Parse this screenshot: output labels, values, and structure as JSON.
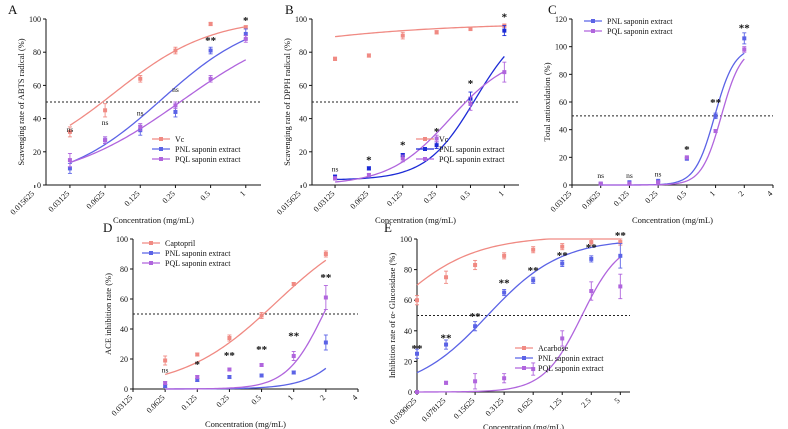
{
  "colors": {
    "red": "#f08a83",
    "blue": "#5b63e6",
    "blueDark": "#1c2bd6",
    "purple": "#b065dd",
    "axis": "#111111"
  },
  "chart_data": [
    {
      "type": "scatter",
      "panel": "A",
      "x": [
        0.03125,
        0.0625,
        0.125,
        0.25,
        0.5,
        1
      ],
      "xticks": [
        "0.015625",
        "0.03125",
        "0.0625",
        "0.125",
        "0.25",
        "0.5",
        "1"
      ],
      "xlim": [
        0.0195,
        1.35
      ],
      "ylabel": "Scavenging rate of ABTS radical (%)",
      "xlabel": "Concentration (mg/mL)",
      "ylim": [
        0,
        100
      ],
      "yticks": [
        "0",
        "20",
        "40",
        "60",
        "80",
        "100"
      ],
      "threshold": 50,
      "legend_position": "bottom-right",
      "series": [
        {
          "name": "Vc",
          "color": "red",
          "line": true,
          "values": [
            32,
            45,
            64,
            81,
            97,
            95
          ],
          "errors": [
            3,
            4,
            2,
            2,
            1,
            1
          ]
        },
        {
          "name": "PNL saponin extract",
          "color": "blue",
          "line": true,
          "values": [
            10,
            27,
            33,
            44,
            81,
            91
          ],
          "errors": [
            3,
            2,
            3,
            3,
            2,
            3
          ]
        },
        {
          "name": "PQL saponin extract",
          "color": "purple",
          "line": true,
          "values": [
            15,
            27,
            35,
            48,
            64,
            88
          ],
          "errors": [
            4,
            2,
            2,
            2,
            2,
            2
          ]
        }
      ],
      "fits": [
        {
          "color": "red",
          "bottom": 10,
          "top": 101,
          "ec50": 0.075,
          "hill": 1.05
        },
        {
          "color": "blue",
          "bottom": 0,
          "top": 103,
          "ec50": 0.19,
          "hill": 1.05
        },
        {
          "color": "purple",
          "bottom": 0,
          "top": 101,
          "ec50": 0.28,
          "hill": 0.85
        }
      ],
      "significance": [
        "ns",
        "ns",
        "ns",
        "ns",
        "**",
        "*"
      ],
      "sig_y": [
        32,
        36,
        42,
        56,
        85,
        97
      ]
    },
    {
      "type": "scatter",
      "panel": "B",
      "x": [
        0.03125,
        0.0625,
        0.125,
        0.25,
        0.5,
        1
      ],
      "xticks": [
        "0.015625",
        "0.03125",
        "0.0625",
        "0.125",
        "0.25",
        "0.5",
        "1"
      ],
      "xlim": [
        0.0195,
        1.35
      ],
      "ylabel": "Scavenging rate of DPPH radical (%)",
      "xlabel": "Concentration (mg/mL)",
      "ylim": [
        0,
        100
      ],
      "yticks": [
        "0",
        "20",
        "40",
        "60",
        "80",
        "100"
      ],
      "threshold": 50,
      "legend_position": "bottom-right",
      "series": [
        {
          "name": "Vc",
          "color": "red",
          "line": true,
          "values": [
            76,
            78,
            90,
            92,
            94,
            96
          ],
          "errors": [
            1,
            1,
            2,
            1,
            1,
            1
          ]
        },
        {
          "name": "PNL saponin extract",
          "color": "blueDark",
          "line": true,
          "values": [
            5,
            10,
            18,
            24,
            52,
            93
          ],
          "errors": [
            1,
            1,
            1,
            2,
            4,
            3
          ]
        },
        {
          "name": "PQL saponin extract",
          "color": "purple",
          "line": true,
          "values": [
            4,
            6,
            16,
            28,
            49,
            68
          ],
          "errors": [
            1,
            1,
            2,
            2,
            4,
            6
          ]
        }
      ],
      "fits": [
        {
          "color": "red",
          "bottom": 0,
          "top": 98,
          "ec50": 0.00012,
          "hill": 0.42
        },
        {
          "color": "blueDark",
          "bottom": 3,
          "top": 100,
          "ec50": 0.55,
          "hill": 2.0
        },
        {
          "color": "purple",
          "bottom": 0,
          "top": 80,
          "ec50": 0.33,
          "hill": 1.6
        }
      ],
      "significance": [
        "ns",
        "*",
        "*",
        "*",
        "*",
        "*"
      ],
      "sig_y": [
        8,
        13,
        22,
        30,
        59,
        99
      ]
    },
    {
      "type": "scatter",
      "panel": "C",
      "x": [
        0.0625,
        0.125,
        0.25,
        0.5,
        1,
        2
      ],
      "xticks": [
        "0.03125",
        "0.0625",
        "0.125",
        "0.25",
        "0.5",
        "1",
        "2",
        "4"
      ],
      "xlim": [
        0.03125,
        4
      ],
      "ylabel": "Total antioxidation (%)",
      "xlabel": "Concentration (mg/mL)",
      "ylim": [
        0,
        120
      ],
      "yticks": [
        "0",
        "20",
        "40",
        "60",
        "80",
        "100",
        "120"
      ],
      "threshold": 50,
      "legend_position": "top-left",
      "series": [
        {
          "name": "PNL saponin extract",
          "color": "blue",
          "line": true,
          "values": [
            1,
            2,
            3,
            19,
            50,
            106
          ],
          "errors": [
            0.5,
            0.5,
            0.5,
            1,
            2,
            4
          ]
        },
        {
          "name": "PQL saponin extract",
          "color": "purple",
          "line": true,
          "values": [
            1,
            1,
            2,
            20,
            39,
            98
          ],
          "errors": [
            0.5,
            0.5,
            0.5,
            1,
            1,
            2
          ]
        }
      ],
      "fits": [
        {
          "color": "blue",
          "bottom": 0,
          "top": 100,
          "ec50": 0.98,
          "hill": 4.2
        },
        {
          "color": "purple",
          "bottom": 0,
          "top": 100,
          "ec50": 1.15,
          "hill": 4.2
        }
      ],
      "significance": [
        "ns",
        "ns",
        "ns",
        "*",
        "**",
        "**"
      ],
      "sig_y": [
        5,
        5,
        6,
        23,
        57,
        111
      ]
    },
    {
      "type": "scatter",
      "panel": "D",
      "x": [
        0.0625,
        0.125,
        0.25,
        0.5,
        1,
        2
      ],
      "xticks": [
        "0.03125",
        "0.0625",
        "0.125",
        "0.25",
        "0.5",
        "1",
        "2",
        "4"
      ],
      "xlim": [
        0.03125,
        4
      ],
      "ylabel": "ACE inhibition rate (%)",
      "xlabel": "Concentration (mg/mL)",
      "ylim": [
        0,
        100
      ],
      "yticks": [
        "0",
        "20",
        "40",
        "60",
        "80",
        "100"
      ],
      "threshold": 50,
      "legend_position": "top-left",
      "series": [
        {
          "name": "Captopril",
          "color": "red",
          "line": true,
          "values": [
            19,
            23,
            34,
            49,
            70,
            90
          ],
          "errors": [
            3,
            1,
            2,
            2,
            1,
            2
          ]
        },
        {
          "name": "PNL saponin extract",
          "color": "blue",
          "line": true,
          "values": [
            2,
            6,
            8,
            9,
            11,
            31
          ],
          "errors": [
            1,
            1,
            1,
            1,
            1,
            5
          ]
        },
        {
          "name": "PQL saponin extract",
          "color": "purple",
          "line": true,
          "values": [
            4,
            8,
            13,
            16,
            22,
            61
          ],
          "errors": [
            1,
            1,
            1,
            1,
            3,
            8
          ]
        }
      ],
      "fits": [
        {
          "color": "red",
          "bottom": 0,
          "top": 115,
          "ec50": 0.68,
          "hill": 1.0
        },
        {
          "color": "blue",
          "bottom": 0,
          "top": 100,
          "ec50": 5.0,
          "hill": 2.0
        },
        {
          "color": "purple",
          "bottom": 0,
          "top": 100,
          "ec50": 1.9,
          "hill": 2.5
        }
      ],
      "significance": [
        "ns",
        "*",
        "**",
        "**",
        "**",
        "**"
      ],
      "sig_y": [
        11,
        14,
        20,
        24,
        33,
        72
      ]
    },
    {
      "type": "scatter",
      "panel": "E",
      "x": [
        0.0390625,
        0.078125,
        0.15625,
        0.3125,
        0.625,
        1.25,
        2.5,
        5
      ],
      "xticks": [
        "0.0390625",
        "0.078125",
        "0.15625",
        "0.3125",
        "0.625",
        "1.25",
        "2.5",
        "5"
      ],
      "xlim": [
        0.0390625,
        6.3
      ],
      "ylabel": "Inhibition rate of α- Glucosidase (%)",
      "xlabel": "Concentration (mg/mL)",
      "ylim": [
        0,
        100
      ],
      "yticks": [
        "0",
        "20",
        "40",
        "60",
        "80",
        "100"
      ],
      "threshold": 50,
      "legend_position": "bottom-right",
      "series": [
        {
          "name": "Acarbose",
          "color": "red",
          "line": true,
          "values": [
            60,
            75,
            83,
            89,
            93,
            95,
            98,
            98
          ],
          "errors": [
            3,
            4,
            3,
            2,
            2,
            2,
            2,
            2
          ]
        },
        {
          "name": "PNL saponin extract",
          "color": "blue",
          "line": true,
          "values": [
            25,
            31,
            43,
            65,
            73,
            84,
            87,
            89
          ],
          "errors": [
            3,
            3,
            3,
            2,
            2,
            2,
            2,
            8
          ]
        },
        {
          "name": "PQL saponin extract",
          "color": "purple",
          "line": true,
          "values": [
            0,
            6,
            7,
            9,
            15,
            35,
            66,
            69
          ],
          "errors": [
            1,
            1,
            5,
            3,
            4,
            5,
            6,
            8
          ]
        }
      ],
      "fits": [
        {
          "color": "red",
          "bottom": 0,
          "top": 102,
          "ec50": 0.018,
          "hill": 1.0
        },
        {
          "color": "blue",
          "bottom": 0,
          "top": 100,
          "ec50": 0.21,
          "hill": 1.15
        },
        {
          "color": "purple",
          "bottom": 0,
          "top": 100,
          "ec50": 2.0,
          "hill": 2.2
        }
      ],
      "significance": [
        "**",
        "**",
        "**",
        "**",
        "**",
        "**",
        "**",
        "**"
      ],
      "sig_y": [
        26,
        33,
        47,
        69,
        77,
        87,
        92,
        100
      ]
    }
  ]
}
